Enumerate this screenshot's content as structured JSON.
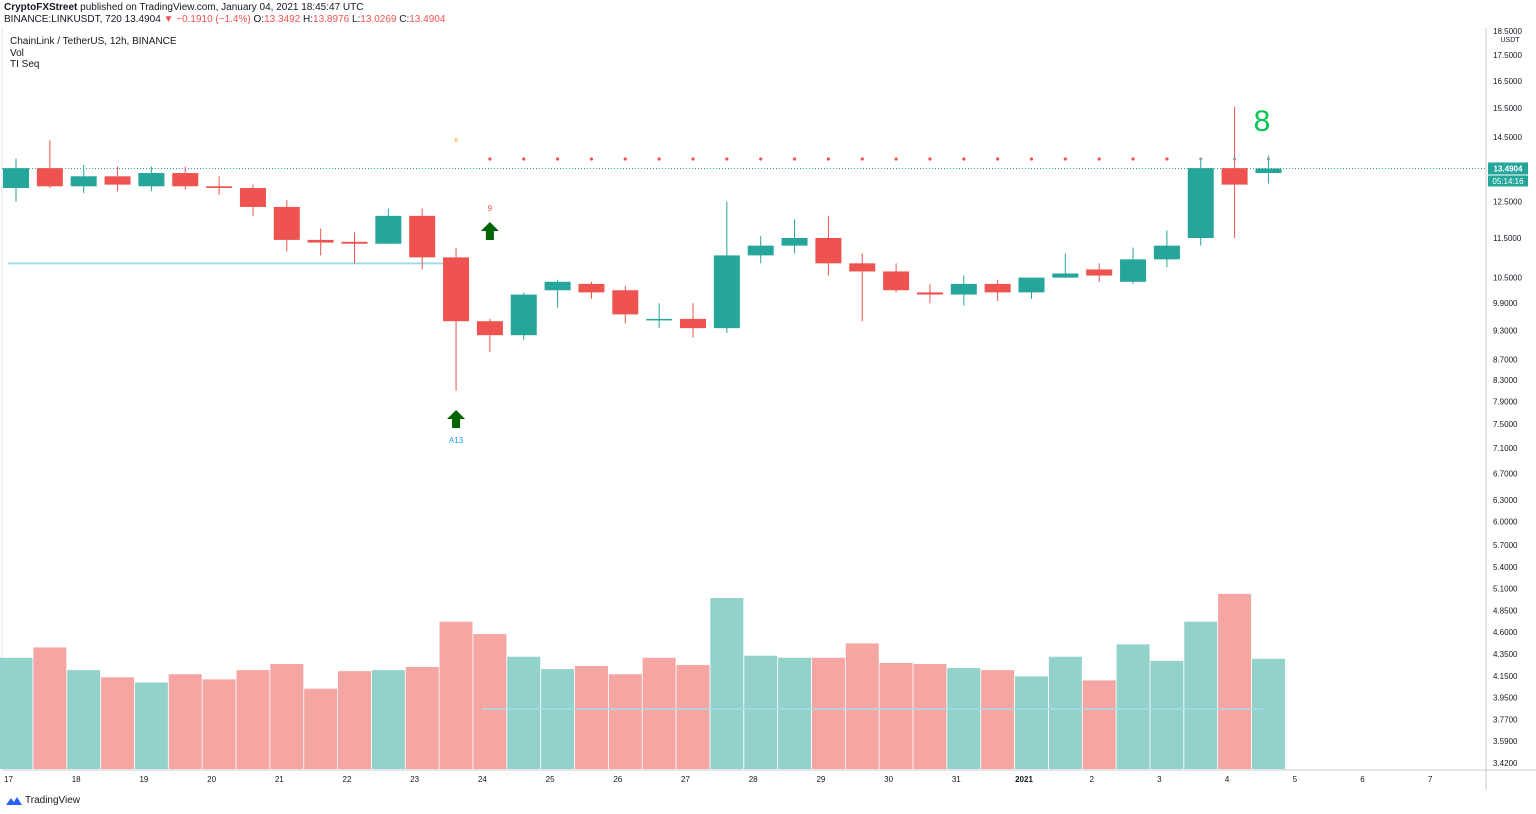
{
  "header": {
    "publisher": "CryptoFXStreet",
    "published_text": "published on TradingView.com, January 04, 2021 18:45:47 UTC",
    "symbol": "BINANCE:LINKUSDT, 720",
    "last": "13.4904",
    "change": "▼ −0.1910 (−1.4%)",
    "o_label": "O:",
    "o_value": "13.3492",
    "h_label": "H:",
    "h_value": "13.8976",
    "l_label": "L:",
    "l_value": "13.0269",
    "c_label": "C:",
    "c_value": "13.4904"
  },
  "legend": {
    "title": "ChainLink / TetherUS, 12h, BINANCE",
    "vol": "Vol",
    "indicator": "TI Seq"
  },
  "footer": {
    "brand": "TradingView"
  },
  "colors": {
    "up": "#26a69a",
    "down": "#ef5350",
    "up_vol": "#93d2cb",
    "down_vol": "#f5a6a3",
    "signal": "#006400",
    "hline": "#a5dbe8"
  },
  "chart_data": {
    "type": "candlestick",
    "price_axis_unit": "USDT",
    "price_axis_ticks": [
      "18.5000",
      "17.5000",
      "16.5000",
      "15.5000",
      "14.5000",
      "13.4904",
      "12.5000",
      "11.5000",
      "10.5000",
      "9.9000",
      "9.3000",
      "8.7000",
      "8.3000",
      "7.9000",
      "7.5000",
      "7.1000",
      "6.7000",
      "6.3000",
      "6.0000",
      "5.7000",
      "5.4000",
      "5.1000",
      "4.8500",
      "4.6000",
      "4.3500",
      "4.1500",
      "3.9500",
      "3.7700",
      "3.5900",
      "3.4200"
    ],
    "price_axis_tick_values": [
      18.5,
      17.5,
      16.5,
      15.5,
      14.5,
      13.4904,
      12.5,
      11.5,
      10.5,
      9.9,
      9.3,
      8.7,
      8.3,
      7.9,
      7.5,
      7.1,
      6.7,
      6.3,
      6.0,
      5.7,
      5.4,
      5.1,
      4.85,
      4.6,
      4.35,
      4.15,
      3.95,
      3.77,
      3.59,
      3.42
    ],
    "last_price_label": "13.4904",
    "countdown_label": "05:14:16",
    "x_ticks": [
      "17",
      "18",
      "19",
      "20",
      "21",
      "22",
      "23",
      "24",
      "25",
      "26",
      "27",
      "28",
      "29",
      "30",
      "31",
      "2021",
      "2",
      "3",
      "4",
      "5",
      "6",
      "7"
    ],
    "candles": [
      {
        "o": 12.9,
        "h": 13.8,
        "l": 12.5,
        "c": 13.5
      },
      {
        "o": 13.5,
        "h": 14.4,
        "l": 12.9,
        "c": 12.95
      },
      {
        "o": 12.95,
        "h": 13.6,
        "l": 12.75,
        "c": 13.25
      },
      {
        "o": 13.25,
        "h": 13.55,
        "l": 12.8,
        "c": 13.0
      },
      {
        "o": 12.95,
        "h": 13.55,
        "l": 12.8,
        "c": 13.35
      },
      {
        "o": 13.35,
        "h": 13.55,
        "l": 12.85,
        "c": 12.95
      },
      {
        "o": 12.95,
        "h": 13.25,
        "l": 12.7,
        "c": 12.9
      },
      {
        "o": 12.9,
        "h": 13.0,
        "l": 12.1,
        "c": 12.35
      },
      {
        "o": 12.35,
        "h": 12.55,
        "l": 11.15,
        "c": 11.45
      },
      {
        "o": 11.45,
        "h": 11.75,
        "l": 11.05,
        "c": 11.38
      },
      {
        "o": 11.4,
        "h": 11.65,
        "l": 10.85,
        "c": 11.35
      },
      {
        "o": 11.35,
        "h": 12.3,
        "l": 11.35,
        "c": 12.1
      },
      {
        "o": 12.1,
        "h": 12.3,
        "l": 10.7,
        "c": 11.0
      },
      {
        "o": 11.0,
        "h": 11.25,
        "l": 8.1,
        "c": 9.5
      },
      {
        "o": 9.5,
        "h": 9.55,
        "l": 8.85,
        "c": 9.2
      },
      {
        "o": 9.2,
        "h": 10.15,
        "l": 9.1,
        "c": 10.1
      },
      {
        "o": 10.2,
        "h": 10.45,
        "l": 9.8,
        "c": 10.4
      },
      {
        "o": 10.35,
        "h": 10.4,
        "l": 10.0,
        "c": 10.15
      },
      {
        "o": 10.2,
        "h": 10.3,
        "l": 9.45,
        "c": 9.65
      },
      {
        "o": 9.55,
        "h": 9.9,
        "l": 9.35,
        "c": 9.55
      },
      {
        "o": 9.55,
        "h": 9.9,
        "l": 9.15,
        "c": 9.35
      },
      {
        "o": 9.35,
        "h": 12.5,
        "l": 9.25,
        "c": 11.05
      },
      {
        "o": 11.05,
        "h": 11.55,
        "l": 10.85,
        "c": 11.3
      },
      {
        "o": 11.3,
        "h": 12.0,
        "l": 11.1,
        "c": 11.5
      },
      {
        "o": 11.5,
        "h": 12.1,
        "l": 10.55,
        "c": 10.85
      },
      {
        "o": 10.85,
        "h": 11.1,
        "l": 9.5,
        "c": 10.65
      },
      {
        "o": 10.65,
        "h": 10.85,
        "l": 10.15,
        "c": 10.2
      },
      {
        "o": 10.15,
        "h": 10.35,
        "l": 9.9,
        "c": 10.1
      },
      {
        "o": 10.1,
        "h": 10.55,
        "l": 9.85,
        "c": 10.35
      },
      {
        "o": 10.35,
        "h": 10.45,
        "l": 9.95,
        "c": 10.15
      },
      {
        "o": 10.15,
        "h": 10.5,
        "l": 10.0,
        "c": 10.5
      },
      {
        "o": 10.5,
        "h": 11.1,
        "l": 10.5,
        "c": 10.6
      },
      {
        "o": 10.7,
        "h": 10.85,
        "l": 10.4,
        "c": 10.55
      },
      {
        "o": 10.4,
        "h": 11.25,
        "l": 10.35,
        "c": 10.95
      },
      {
        "o": 10.95,
        "h": 11.7,
        "l": 10.75,
        "c": 11.3
      },
      {
        "o": 11.5,
        "h": 13.8,
        "l": 11.3,
        "c": 13.5
      },
      {
        "o": 13.5,
        "h": 15.55,
        "l": 11.5,
        "c": 13.0
      },
      {
        "o": 13.35,
        "h": 13.9,
        "l": 13.03,
        "c": 13.49
      }
    ],
    "volume": [
      {
        "v": 108,
        "up": true
      },
      {
        "v": 118,
        "up": false
      },
      {
        "v": 96,
        "up": true
      },
      {
        "v": 89,
        "up": false
      },
      {
        "v": 84,
        "up": true
      },
      {
        "v": 92,
        "up": false
      },
      {
        "v": 87,
        "up": false
      },
      {
        "v": 96,
        "up": false
      },
      {
        "v": 102,
        "up": false
      },
      {
        "v": 78,
        "up": false
      },
      {
        "v": 95,
        "up": false
      },
      {
        "v": 96,
        "up": true
      },
      {
        "v": 99,
        "up": false
      },
      {
        "v": 143,
        "up": false
      },
      {
        "v": 131,
        "up": false
      },
      {
        "v": 109,
        "up": true
      },
      {
        "v": 97,
        "up": true
      },
      {
        "v": 100,
        "up": false
      },
      {
        "v": 92,
        "up": false
      },
      {
        "v": 108,
        "up": false
      },
      {
        "v": 101,
        "up": false
      },
      {
        "v": 166,
        "up": true
      },
      {
        "v": 110,
        "up": true
      },
      {
        "v": 108,
        "up": true
      },
      {
        "v": 108,
        "up": false
      },
      {
        "v": 122,
        "up": false
      },
      {
        "v": 103,
        "up": false
      },
      {
        "v": 102,
        "up": false
      },
      {
        "v": 98,
        "up": true
      },
      {
        "v": 96,
        "up": false
      },
      {
        "v": 90,
        "up": true
      },
      {
        "v": 109,
        "up": true
      },
      {
        "v": 86,
        "up": false
      },
      {
        "v": 121,
        "up": true
      },
      {
        "v": 105,
        "up": true
      },
      {
        "v": 143,
        "up": true
      },
      {
        "v": 170,
        "up": false
      },
      {
        "v": 107,
        "up": true
      }
    ],
    "annotations": {
      "small_8": "8",
      "count_9": "9",
      "label_a13": "A13",
      "big_8": "8"
    }
  }
}
